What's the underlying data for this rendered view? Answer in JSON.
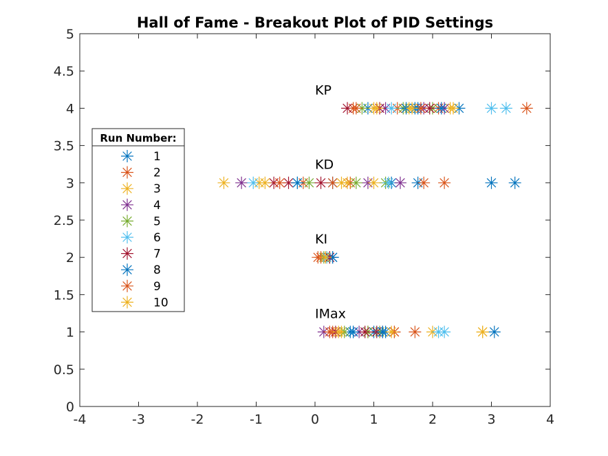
{
  "chart_data": {
    "type": "scatter",
    "title": "Hall of Fame - Breakout Plot of PID Settings",
    "xlabel": "",
    "ylabel": "",
    "xlim": [
      -4,
      4
    ],
    "ylim": [
      0,
      5
    ],
    "x_ticks": [
      "-4",
      "-3",
      "-2",
      "-1",
      "0",
      "1",
      "2",
      "3",
      "4"
    ],
    "y_ticks": [
      "0",
      "0.5",
      "1",
      "1.5",
      "2",
      "2.5",
      "3",
      "3.5",
      "4",
      "4.5",
      "5"
    ],
    "grid": false,
    "marker": "asterisk",
    "legend": {
      "title": "Run Number:",
      "position": "left"
    },
    "annotations": [
      {
        "text": "KP",
        "x": 0.0,
        "y": 4.25
      },
      {
        "text": "KD",
        "x": 0.0,
        "y": 3.25
      },
      {
        "text": "KI",
        "x": 0.0,
        "y": 2.25
      },
      {
        "text": "IMax",
        "x": 0.0,
        "y": 1.25
      }
    ],
    "series": [
      {
        "name": "1",
        "color": "#0072BD",
        "points": [
          [
            0.9,
            4
          ],
          [
            1.7,
            4
          ],
          [
            2.45,
            4
          ],
          [
            0.3,
            3
          ],
          [
            1.3,
            3
          ],
          [
            3.4,
            3
          ],
          [
            0.3,
            2
          ],
          [
            0.6,
            1
          ],
          [
            1.0,
            1
          ],
          [
            3.05,
            1
          ]
        ]
      },
      {
        "name": "2",
        "color": "#D95319",
        "points": [
          [
            0.65,
            4
          ],
          [
            1.4,
            4
          ],
          [
            2.1,
            4
          ],
          [
            -0.2,
            3
          ],
          [
            0.6,
            3
          ],
          [
            2.2,
            3
          ],
          [
            0.1,
            2
          ],
          [
            0.3,
            1
          ],
          [
            0.9,
            1
          ],
          [
            1.35,
            1
          ]
        ]
      },
      {
        "name": "3",
        "color": "#EDB120",
        "points": [
          [
            1.0,
            4
          ],
          [
            1.6,
            4
          ],
          [
            2.3,
            4
          ],
          [
            -1.55,
            3
          ],
          [
            -0.95,
            3
          ],
          [
            0.55,
            3
          ],
          [
            0.2,
            2
          ],
          [
            0.45,
            1
          ],
          [
            2.0,
            1
          ],
          [
            2.85,
            1
          ]
        ]
      },
      {
        "name": "4",
        "color": "#7E2F8E",
        "points": [
          [
            1.2,
            4
          ],
          [
            1.85,
            4
          ],
          [
            2.2,
            4
          ],
          [
            -1.25,
            3
          ],
          [
            0.9,
            3
          ],
          [
            1.45,
            3
          ],
          [
            0.25,
            2
          ],
          [
            0.15,
            1
          ],
          [
            0.75,
            1
          ],
          [
            1.15,
            1
          ]
        ]
      },
      {
        "name": "5",
        "color": "#77AC30",
        "points": [
          [
            0.8,
            4
          ],
          [
            1.5,
            4
          ],
          [
            2.0,
            4
          ],
          [
            -0.1,
            3
          ],
          [
            0.7,
            3
          ],
          [
            1.2,
            3
          ],
          [
            0.15,
            2
          ],
          [
            0.5,
            1
          ],
          [
            0.9,
            1
          ],
          [
            1.1,
            1
          ]
        ]
      },
      {
        "name": "6",
        "color": "#4DBEEE",
        "points": [
          [
            1.3,
            4
          ],
          [
            3.0,
            4
          ],
          [
            3.25,
            4
          ],
          [
            -1.05,
            3
          ],
          [
            -0.3,
            3
          ],
          [
            1.25,
            3
          ],
          [
            0.2,
            2
          ],
          [
            0.65,
            1
          ],
          [
            2.2,
            1
          ],
          [
            2.1,
            1
          ]
        ]
      },
      {
        "name": "7",
        "color": "#A2142F",
        "points": [
          [
            0.55,
            4
          ],
          [
            1.1,
            4
          ],
          [
            1.95,
            4
          ],
          [
            -0.7,
            3
          ],
          [
            -0.45,
            3
          ],
          [
            0.1,
            3
          ],
          [
            0.25,
            2
          ],
          [
            0.35,
            1
          ],
          [
            0.85,
            1
          ],
          [
            1.05,
            1
          ]
        ]
      },
      {
        "name": "8",
        "color": "#0072BD",
        "points": [
          [
            1.55,
            4
          ],
          [
            1.75,
            4
          ],
          [
            2.15,
            4
          ],
          [
            -0.3,
            3
          ],
          [
            1.75,
            3
          ],
          [
            3.0,
            3
          ],
          [
            0.3,
            2
          ],
          [
            0.65,
            1
          ],
          [
            1.15,
            1
          ],
          [
            1.2,
            1
          ]
        ]
      },
      {
        "name": "9",
        "color": "#D95319",
        "points": [
          [
            0.7,
            4
          ],
          [
            1.8,
            4
          ],
          [
            3.6,
            4
          ],
          [
            -0.6,
            3
          ],
          [
            0.3,
            3
          ],
          [
            1.85,
            3
          ],
          [
            0.05,
            2
          ],
          [
            0.25,
            1
          ],
          [
            1.35,
            1
          ],
          [
            1.7,
            1
          ]
        ]
      },
      {
        "name": "10",
        "color": "#EDB120",
        "points": [
          [
            1.05,
            4
          ],
          [
            1.65,
            4
          ],
          [
            2.35,
            4
          ],
          [
            -0.85,
            3
          ],
          [
            0.45,
            3
          ],
          [
            1.0,
            3
          ],
          [
            0.18,
            2
          ],
          [
            0.4,
            1
          ],
          [
            1.3,
            1
          ],
          [
            2.85,
            1
          ]
        ]
      }
    ]
  }
}
